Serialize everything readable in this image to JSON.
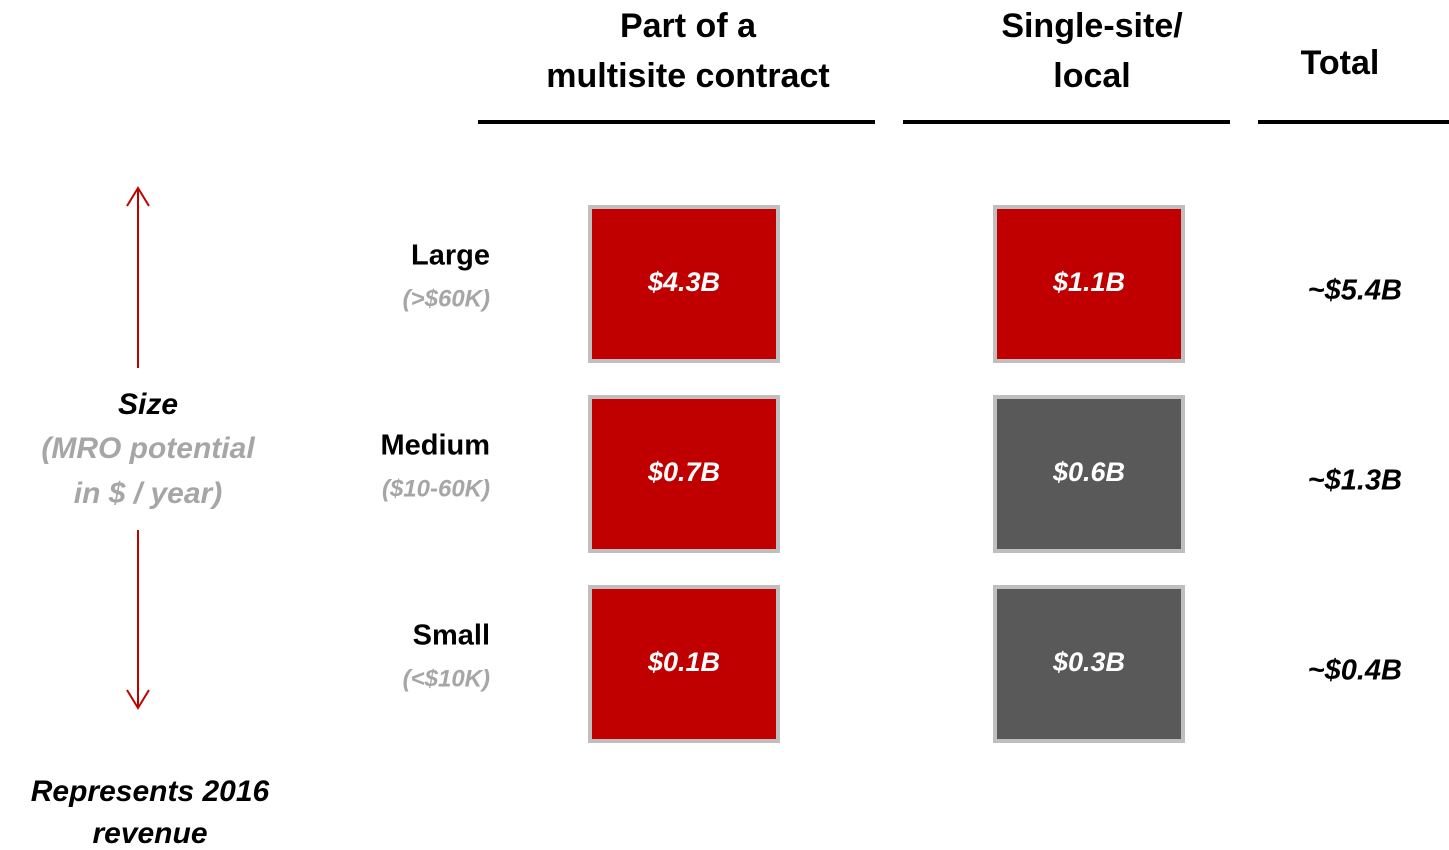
{
  "columns": [
    {
      "title": [
        "Part of a",
        "multisite contract"
      ]
    },
    {
      "title": [
        "Single-site/",
        "local"
      ]
    },
    {
      "title": [
        "Total"
      ]
    }
  ],
  "axis": {
    "title": "Size",
    "subtitle": [
      "(MRO potential",
      "in $ / year)"
    ]
  },
  "rows": [
    {
      "label": "Large",
      "sublabel": "(>$60K)",
      "cells": [
        {
          "text": "$4.3B",
          "color": "#c00000"
        },
        {
          "text": "$1.1B",
          "color": "#c00000"
        }
      ],
      "total": "~$5.4B"
    },
    {
      "label": "Medium",
      "sublabel": "($10-60K)",
      "cells": [
        {
          "text": "$0.7B",
          "color": "#c00000"
        },
        {
          "text": "$0.6B",
          "color": "#595959"
        }
      ],
      "total": "~$1.3B"
    },
    {
      "label": "Small",
      "sublabel": "(<$10K)",
      "cells": [
        {
          "text": "$0.1B",
          "color": "#c00000"
        },
        {
          "text": "$0.3B",
          "color": "#595959"
        }
      ],
      "total": "~$0.4B"
    }
  ],
  "footnote": [
    "Represents 2016",
    "revenue"
  ]
}
